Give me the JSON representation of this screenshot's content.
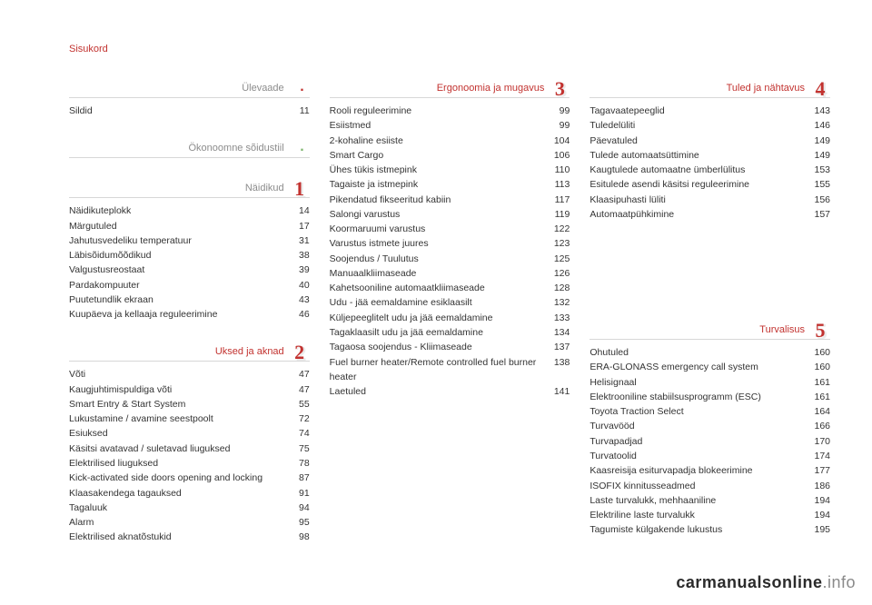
{
  "running_title": {
    "text": "Sisukord",
    "color": "#c2322f"
  },
  "watermark": {
    "dark": "carmanualsonline",
    "light": ".info"
  },
  "columns": [
    {
      "sections": [
        {
          "title": "Ülevaade",
          "title_color": "#8c8c8c",
          "badge": {
            "type": "dot",
            "color": "#c2322f"
          },
          "entries": [
            {
              "label": "Sildid",
              "page": "11"
            }
          ]
        },
        {
          "title": "Ökonoomne sõidustiil",
          "title_color": "#8c8c8c",
          "badge": {
            "type": "dot",
            "color": "#7fb66f"
          },
          "entries": []
        },
        {
          "title": "Näidikud",
          "title_color": "#8c8c8c",
          "badge": {
            "type": "number",
            "num": "1",
            "color": "#c2322f"
          },
          "entries": [
            {
              "label": "Näidikuteplokk",
              "page": "14"
            },
            {
              "label": "Märgutuled",
              "page": "17"
            },
            {
              "label": "Jahutusvedeliku temperatuur",
              "page": "31"
            },
            {
              "label": "Läbisõidumõõdikud",
              "page": "38"
            },
            {
              "label": "Valgustusreostaat",
              "page": "39"
            },
            {
              "label": "Pardakompuuter",
              "page": "40"
            },
            {
              "label": "Puutetundlik ekraan",
              "page": "43"
            },
            {
              "label": "Kuupäeva ja kellaaja reguleerimine",
              "page": "46"
            }
          ]
        },
        {
          "title": "Uksed ja aknad",
          "title_color": "#c2322f",
          "badge": {
            "type": "number",
            "num": "2",
            "color": "#c2322f"
          },
          "entries": [
            {
              "label": "Võti",
              "page": "47"
            },
            {
              "label": "Kaugjuhtimispuldiga võti",
              "page": "47"
            },
            {
              "label": "Smart Entry & Start System",
              "page": "55"
            },
            {
              "label": "Lukustamine / avamine seestpoolt",
              "page": "72"
            },
            {
              "label": "Esiuksed",
              "page": "74"
            },
            {
              "label": "Käsitsi avatavad / suletavad liuguksed",
              "page": "75"
            },
            {
              "label": "Elektrilised liuguksed",
              "page": "78"
            },
            {
              "label": "Kick-activated side doors opening and locking",
              "page": "87"
            },
            {
              "label": "Klaasakendega tagauksed",
              "page": "91"
            },
            {
              "label": "Tagaluuk",
              "page": "94"
            },
            {
              "label": "Alarm",
              "page": "95"
            },
            {
              "label": "Elektrilised aknatõstukid",
              "page": "98"
            }
          ]
        }
      ]
    },
    {
      "sections": [
        {
          "title": "Ergonoomia ja mugavus",
          "title_color": "#c2322f",
          "badge": {
            "type": "number",
            "num": "3",
            "color": "#c2322f"
          },
          "entries": [
            {
              "label": "Rooli reguleerimine",
              "page": "99"
            },
            {
              "label": "Esiistmed",
              "page": "99"
            },
            {
              "label": "2-kohaline esiiste",
              "page": "104"
            },
            {
              "label": "Smart Cargo",
              "page": "106"
            },
            {
              "label": "Ühes tükis istmepink",
              "page": "110"
            },
            {
              "label": "Tagaiste ja istmepink",
              "page": "113"
            },
            {
              "label": "Pikendatud fikseeritud kabiin",
              "page": "117"
            },
            {
              "label": "Salongi varustus",
              "page": "119"
            },
            {
              "label": "Koormaruumi varustus",
              "page": "122"
            },
            {
              "label": "Varustus istmete juures",
              "page": "123"
            },
            {
              "label": "Soojendus / Tuulutus",
              "page": "125"
            },
            {
              "label": "Manuaalkliimaseade",
              "page": "126"
            },
            {
              "label": "Kahetsooniline automaatkliimaseade",
              "page": "128"
            },
            {
              "label": "Udu - jää eemaldamine esiklaasilt",
              "page": "132"
            },
            {
              "label": "Küljepeeglitelt udu ja jää eemaldamine",
              "page": "133"
            },
            {
              "label": "Tagaklaasilt udu ja jää eemaldamine",
              "page": "134"
            },
            {
              "label": "Tagaosa soojendus - Kliimaseade",
              "page": "137"
            },
            {
              "label": "Fuel burner heater/Remote controlled fuel burner heater",
              "page": "138"
            },
            {
              "label": "Laetuled",
              "page": "141"
            }
          ]
        }
      ]
    },
    {
      "sections": [
        {
          "title": "Tuled ja nähtavus",
          "title_color": "#c2322f",
          "badge": {
            "type": "number",
            "num": "4",
            "color": "#c2322f"
          },
          "entries": [
            {
              "label": "Tagavaatepeeglid",
              "page": "143"
            },
            {
              "label": "Tuledelüliti",
              "page": "146"
            },
            {
              "label": "Päevatuled",
              "page": "149"
            },
            {
              "label": "Tulede automaatsüttimine",
              "page": "149"
            },
            {
              "label": "Kaugtulede automaatne ümberlülitus",
              "page": "153"
            },
            {
              "label": "Esitulede asendi käsitsi reguleerimine",
              "page": "155"
            },
            {
              "label": "Klaasipuhasti lüliti",
              "page": "156"
            },
            {
              "label": "Automaatpühkimine",
              "page": "157"
            }
          ]
        },
        {
          "title": "Turvalisus",
          "title_color": "#c2322f",
          "badge": {
            "type": "number",
            "num": "5",
            "color": "#c2322f"
          },
          "spacer_before": 86,
          "entries": [
            {
              "label": "Ohutuled",
              "page": "160"
            },
            {
              "label": "ERA-GLONASS emergency call system",
              "page": "160"
            },
            {
              "label": "Helisignaal",
              "page": "161"
            },
            {
              "label": "Elektrooniline stabiilsusprogramm (ESC)",
              "page": "161"
            },
            {
              "label": "Toyota Traction Select",
              "page": "164"
            },
            {
              "label": "Turvavööd",
              "page": "166"
            },
            {
              "label": "Turvapadjad",
              "page": "170"
            },
            {
              "label": "Turvatoolid",
              "page": "174"
            },
            {
              "label": "Kaasreisija esiturvapadja blokeerimine",
              "page": "177"
            },
            {
              "label": "ISOFIX kinnitusseadmed",
              "page": "186"
            },
            {
              "label": "Laste turvalukk, mehhaaniline",
              "page": "194"
            },
            {
              "label": "Elektriline laste turvalukk",
              "page": "194"
            },
            {
              "label": "Tagumiste külgakende lukustus",
              "page": "195"
            }
          ]
        }
      ]
    }
  ]
}
